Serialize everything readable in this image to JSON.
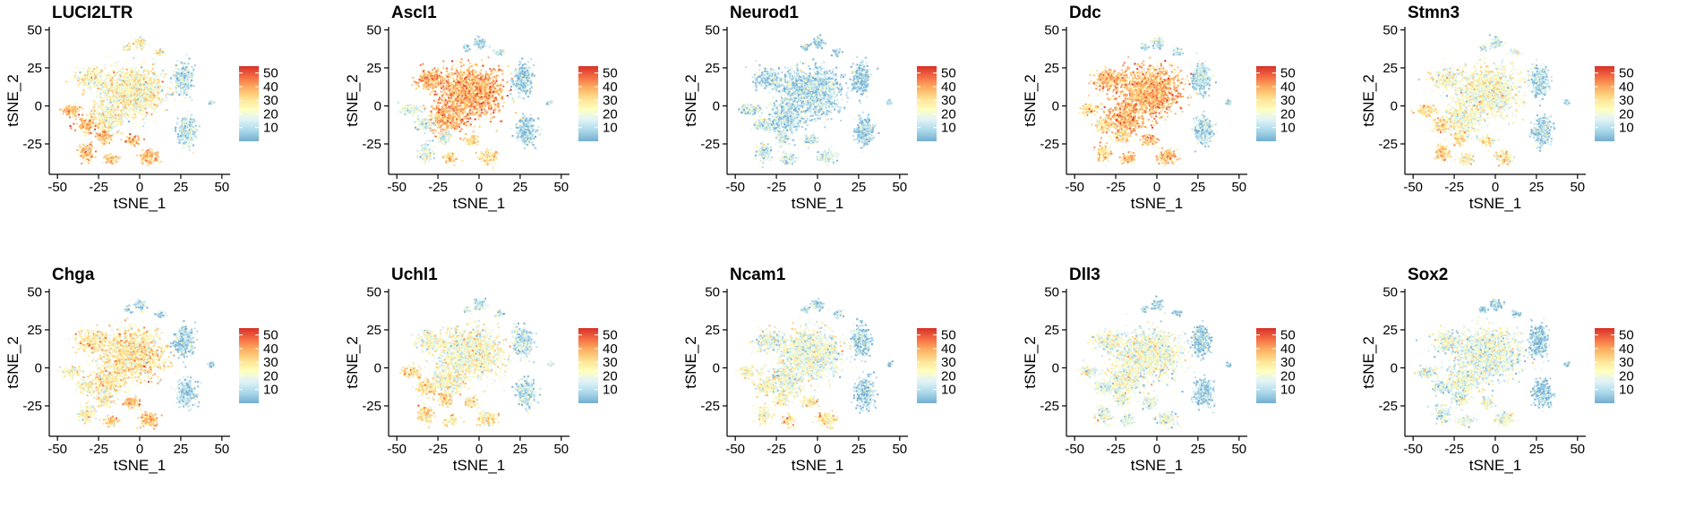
{
  "colors": {
    "scale": [
      "#74add1",
      "#abd9e9",
      "#e0f3f8",
      "#ffffbf",
      "#fee090",
      "#fdae61",
      "#f46d43",
      "#d73027"
    ],
    "axis": "#000000"
  },
  "legend": {
    "ticks": [
      10,
      20,
      30,
      40,
      50
    ],
    "range": [
      0,
      55
    ]
  },
  "chart_data": [
    {
      "type": "scatter",
      "title": "LUCI2LTR",
      "xlabel": "tSNE_1",
      "ylabel": "tSNE_2",
      "xlim": [
        -55,
        55
      ],
      "ylim": [
        -45,
        52
      ],
      "xticks": [
        -50,
        -25,
        0,
        25,
        50
      ],
      "yticks": [
        -25,
        0,
        25,
        50
      ],
      "expression": {
        "main": 24,
        "left": 35,
        "bottom": 34,
        "topblob": 27,
        "right": 12
      }
    },
    {
      "type": "scatter",
      "title": "Ascl1",
      "xlabel": "tSNE_1",
      "ylabel": "tSNE_2",
      "xlim": [
        -55,
        55
      ],
      "ylim": [
        -45,
        52
      ],
      "xticks": [
        -50,
        -25,
        0,
        25,
        50
      ],
      "yticks": [
        -25,
        0,
        25,
        50
      ],
      "expression": {
        "main": 38,
        "left": 16,
        "bottom": 30,
        "topblob": 10,
        "right": 8
      }
    },
    {
      "type": "scatter",
      "title": "Neurod1",
      "xlabel": "tSNE_1",
      "ylabel": "tSNE_2",
      "xlim": [
        -55,
        55
      ],
      "ylim": [
        -45,
        52
      ],
      "xticks": [
        -50,
        -25,
        0,
        25,
        50
      ],
      "yticks": [
        -25,
        0,
        25,
        50
      ],
      "expression": {
        "main": 10,
        "left": 14,
        "bottom": 14,
        "topblob": 8,
        "right": 7
      }
    },
    {
      "type": "scatter",
      "title": "Ddc",
      "xlabel": "tSNE_1",
      "ylabel": "tSNE_2",
      "xlim": [
        -55,
        55
      ],
      "ylim": [
        -45,
        52
      ],
      "xticks": [
        -50,
        -25,
        0,
        25,
        50
      ],
      "yticks": [
        -25,
        0,
        25,
        50
      ],
      "expression": {
        "main": 37,
        "left": 30,
        "bottom": 36,
        "topblob": 12,
        "right": 10
      }
    },
    {
      "type": "scatter",
      "title": "Stmn3",
      "xlabel": "tSNE_1",
      "ylabel": "tSNE_2",
      "xlim": [
        -55,
        55
      ],
      "ylim": [
        -45,
        52
      ],
      "xticks": [
        -50,
        -25,
        0,
        25,
        50
      ],
      "yticks": [
        -25,
        0,
        25,
        50
      ],
      "expression": {
        "main": 22,
        "left": 30,
        "bottom": 26,
        "topblob": 14,
        "right": 9
      }
    },
    {
      "type": "scatter",
      "title": "Chga",
      "xlabel": "tSNE_1",
      "ylabel": "tSNE_2",
      "xlim": [
        -55,
        55
      ],
      "ylim": [
        -45,
        52
      ],
      "xticks": [
        -50,
        -25,
        0,
        25,
        50
      ],
      "yticks": [
        -25,
        0,
        25,
        50
      ],
      "expression": {
        "main": 28,
        "left": 24,
        "bottom": 36,
        "topblob": 10,
        "right": 9
      }
    },
    {
      "type": "scatter",
      "title": "Uchl1",
      "xlabel": "tSNE_1",
      "ylabel": "tSNE_2",
      "xlim": [
        -55,
        55
      ],
      "ylim": [
        -45,
        52
      ],
      "xticks": [
        -50,
        -25,
        0,
        25,
        50
      ],
      "yticks": [
        -25,
        0,
        25,
        50
      ],
      "expression": {
        "main": 22,
        "left": 30,
        "bottom": 28,
        "topblob": 12,
        "right": 11
      }
    },
    {
      "type": "scatter",
      "title": "Ncam1",
      "xlabel": "tSNE_1",
      "ylabel": "tSNE_2",
      "xlim": [
        -55,
        55
      ],
      "ylim": [
        -45,
        52
      ],
      "xticks": [
        -50,
        -25,
        0,
        25,
        50
      ],
      "yticks": [
        -25,
        0,
        25,
        50
      ],
      "expression": {
        "main": 19,
        "left": 24,
        "bottom": 28,
        "topblob": 10,
        "right": 8
      }
    },
    {
      "type": "scatter",
      "title": "Dll3",
      "xlabel": "tSNE_1",
      "ylabel": "tSNE_2",
      "xlim": [
        -55,
        55
      ],
      "ylim": [
        -45,
        52
      ],
      "xticks": [
        -50,
        -25,
        0,
        25,
        50
      ],
      "yticks": [
        -25,
        0,
        25,
        50
      ],
      "expression": {
        "main": 20,
        "left": 18,
        "bottom": 16,
        "topblob": 8,
        "right": 7
      }
    },
    {
      "type": "scatter",
      "title": "Sox2",
      "xlabel": "tSNE_1",
      "ylabel": "tSNE_2",
      "xlim": [
        -55,
        55
      ],
      "ylim": [
        -45,
        52
      ],
      "xticks": [
        -50,
        -25,
        0,
        25,
        50
      ],
      "yticks": [
        -25,
        0,
        25,
        50
      ],
      "expression": {
        "main": 18,
        "left": 16,
        "bottom": 20,
        "topblob": 8,
        "right": 7
      }
    }
  ]
}
